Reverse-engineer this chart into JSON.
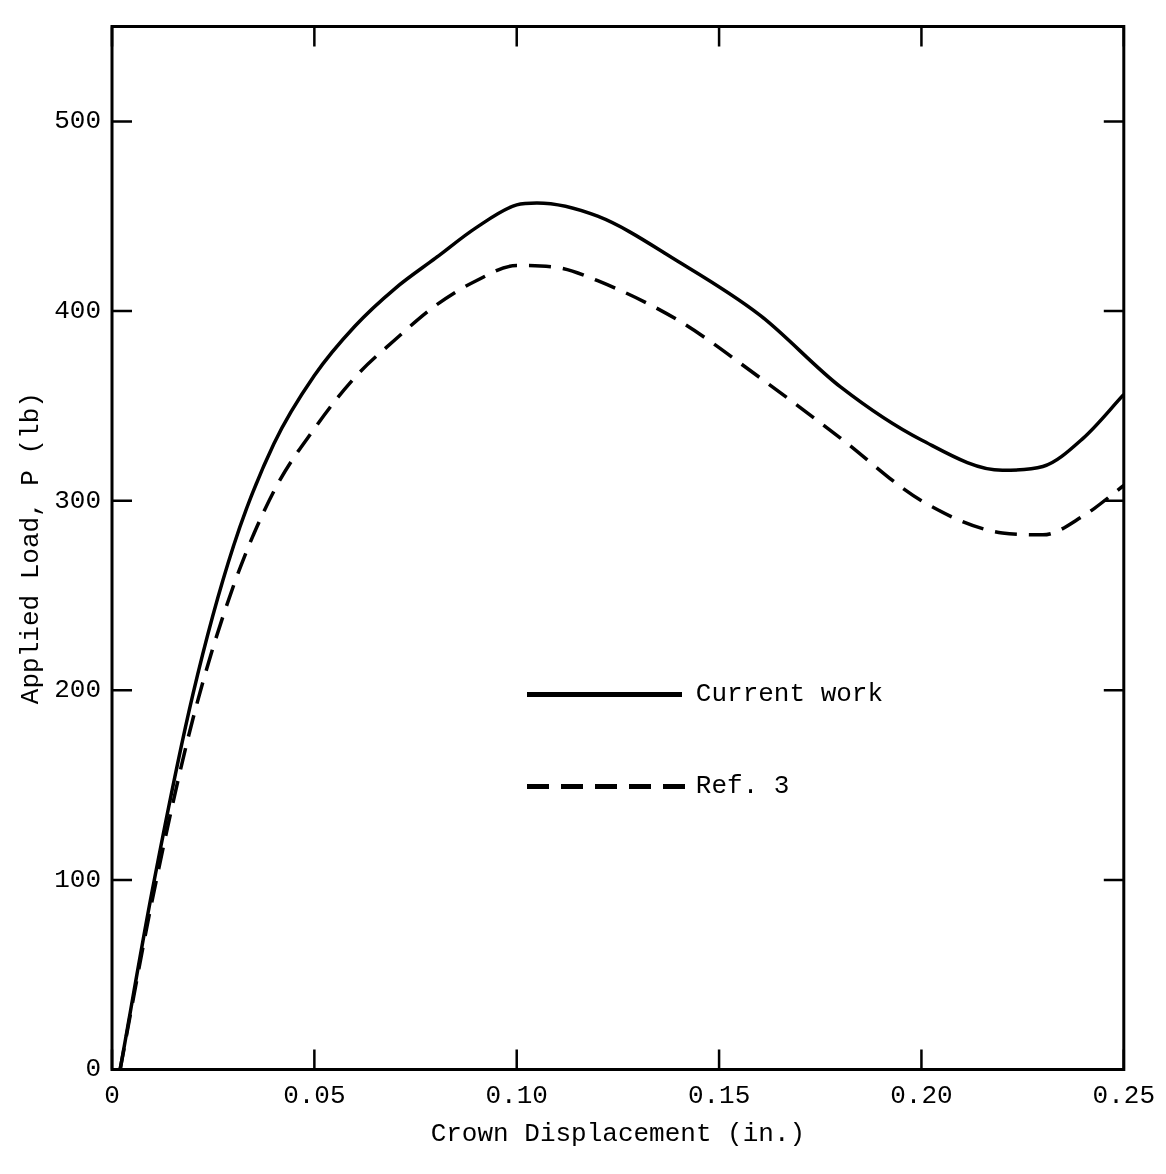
{
  "chart_data": {
    "type": "line",
    "xlabel": "Crown Displacement (in.)",
    "ylabel": "Applied Load, P (lb)",
    "xlim": [
      0,
      0.25
    ],
    "ylim": [
      0,
      550
    ],
    "xticks": [
      0,
      0.05,
      {
        "value": 0.1,
        "label": "0.10"
      },
      0.15,
      {
        "value": 0.2,
        "label": "0.20"
      },
      0.25
    ],
    "yticks": [
      0,
      100,
      200,
      300,
      400,
      500
    ],
    "grid": false,
    "legend": "center right",
    "marker": "none",
    "series": [
      {
        "name": "Current work",
        "color": "#000000",
        "line_style": "solid",
        "x": [
          0.002,
          0.01,
          0.02,
          0.03,
          0.04,
          0.05,
          0.06,
          0.07,
          0.08,
          0.09,
          0.1,
          0.105,
          0.12,
          0.14,
          0.16,
          0.18,
          0.2,
          0.22,
          0.23,
          0.24,
          0.25
        ],
        "values": [
          0,
          95,
          198,
          276,
          330,
          366,
          392,
          412,
          428,
          444,
          456,
          457,
          450,
          426,
          398,
          360,
          332,
          316,
          318,
          333,
          356
        ]
      },
      {
        "name": "Ref. 3",
        "color": "#000000",
        "line_style": "dashed",
        "x": [
          0.002,
          0.01,
          0.02,
          0.03,
          0.04,
          0.05,
          0.06,
          0.07,
          0.08,
          0.09,
          0.1,
          0.11,
          0.12,
          0.14,
          0.16,
          0.18,
          0.2,
          0.22,
          0.23,
          0.24,
          0.25
        ],
        "values": [
          0,
          90,
          185,
          255,
          305,
          338,
          365,
          385,
          403,
          416,
          424,
          423,
          416,
          395,
          365,
          333,
          300,
          283,
          282,
          292,
          308
        ]
      }
    ]
  }
}
